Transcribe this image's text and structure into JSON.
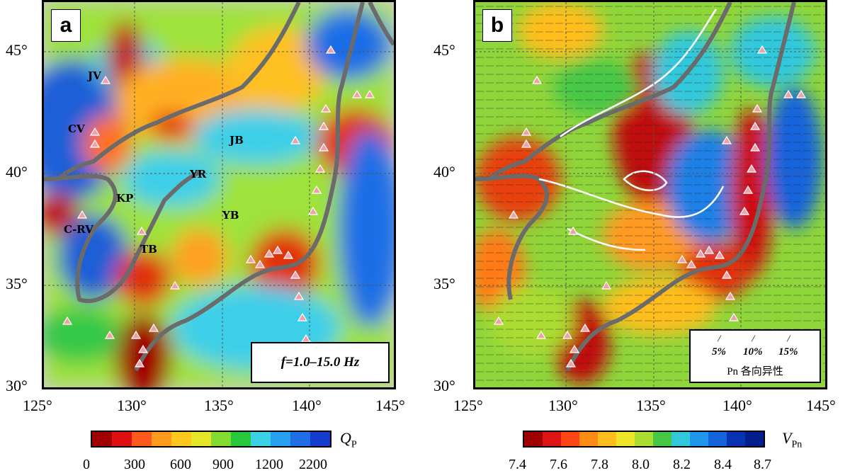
{
  "panels": [
    {
      "letter": "a",
      "regions": [
        "JV",
        "CV",
        "JB",
        "YR",
        "KP",
        "YB",
        "C-RV",
        "TB"
      ],
      "frequency_label": "f=1.0–15.0 Hz",
      "colorbar": {
        "title": "Q",
        "title_sub": "P",
        "ticks": [
          "0",
          "300",
          "600",
          "900",
          "1200",
          "2200"
        ],
        "colors": [
          "#a00000",
          "#e01010",
          "#ff5a1e",
          "#ff9a1e",
          "#ffc81e",
          "#e6e628",
          "#82dc32",
          "#28c83c",
          "#3cd2e6",
          "#28a0f0",
          "#1e6ee6",
          "#143ccd"
        ]
      }
    },
    {
      "letter": "b",
      "anisotropy_scales": [
        "5%",
        "10%",
        "15%"
      ],
      "anisotropy_title": "Pn 各向异性",
      "colorbar": {
        "title": "V",
        "title_sub": "Pn",
        "ticks": [
          "7.4",
          "7.6",
          "7.8",
          "8.0",
          "8.2",
          "8.4",
          "8.7"
        ],
        "colors": [
          "#a00000",
          "#dc1414",
          "#ff4614",
          "#ff8c14",
          "#ffbe1e",
          "#f0e628",
          "#aadc32",
          "#46c846",
          "#32c8dc",
          "#1e96eb",
          "#1464dc",
          "#0a32b4",
          "#001e8c"
        ]
      }
    }
  ],
  "axes": {
    "latitude_labels": [
      "45°",
      "40°",
      "35°",
      "30°"
    ],
    "longitude_labels": [
      "125°",
      "130°",
      "135°",
      "140°",
      "145°"
    ]
  }
}
